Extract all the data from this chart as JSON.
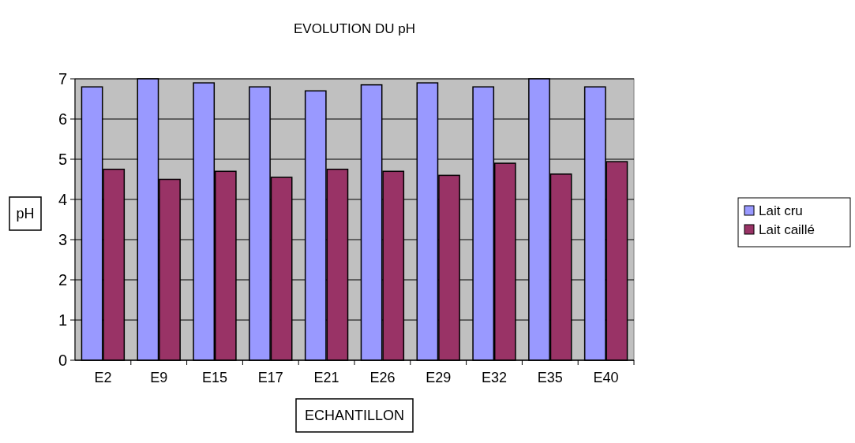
{
  "chart_data": {
    "type": "bar",
    "title": "EVOLUTION DU pH",
    "xlabel": "ECHANTILLON",
    "ylabel": "pH",
    "categories": [
      "E2",
      "E9",
      "E15",
      "E17",
      "E21",
      "E26",
      "E29",
      "E32",
      "E35",
      "E40"
    ],
    "series": [
      {
        "name": "Lait cru",
        "color": "#9999ff",
        "values": [
          6.8,
          7.0,
          6.9,
          6.8,
          6.7,
          6.85,
          6.9,
          6.8,
          7.0,
          6.8
        ]
      },
      {
        "name": "Lait caillé",
        "color": "#993366",
        "values": [
          4.75,
          4.5,
          4.7,
          4.55,
          4.75,
          4.7,
          4.6,
          4.9,
          4.63,
          4.94
        ]
      }
    ],
    "ylim": [
      0,
      7
    ],
    "yticks": [
      0,
      1,
      2,
      3,
      4,
      5,
      6,
      7
    ],
    "grid": "y",
    "legend": "right"
  }
}
